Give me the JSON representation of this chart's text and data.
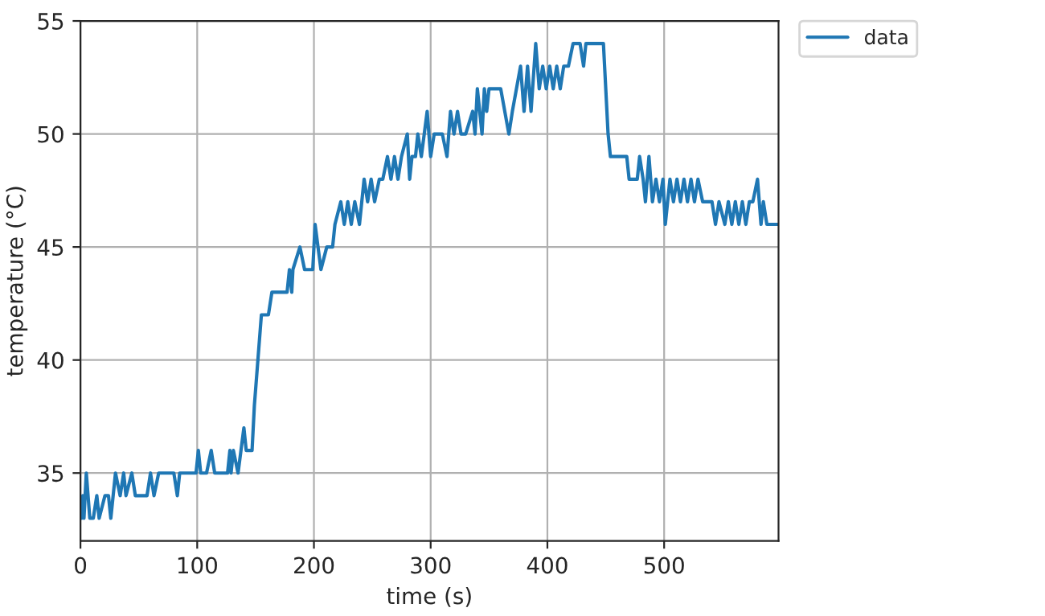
{
  "chart_data": {
    "type": "line",
    "xlabel": "time (s)",
    "ylabel": "temperature (°C)",
    "xlim": [
      0,
      598
    ],
    "ylim": [
      32,
      55
    ],
    "xticks": [
      0,
      100,
      200,
      300,
      400,
      500
    ],
    "yticks": [
      35,
      40,
      45,
      50,
      55
    ],
    "grid": true,
    "legend": "outside top right",
    "line_style": "solid",
    "series": [
      {
        "name": "data",
        "color": "#1f77b4",
        "x": [
          0,
          1,
          2,
          3,
          5,
          8,
          11,
          14,
          16,
          21,
          24,
          26,
          30,
          34,
          37,
          39,
          44,
          47,
          57,
          60,
          63,
          67,
          80,
          83,
          85,
          99,
          101,
          103,
          108,
          112,
          115,
          126,
          128,
          129,
          131,
          135,
          140,
          142,
          147,
          149,
          152,
          155,
          161,
          164,
          177,
          179,
          181,
          182,
          188,
          192,
          199,
          201,
          206,
          211,
          216,
          218,
          223,
          226,
          229,
          232,
          235,
          239,
          243,
          246,
          249,
          252,
          256,
          259,
          263,
          266,
          269,
          272,
          275,
          280,
          282,
          284,
          287,
          289,
          292,
          297,
          300,
          303,
          310,
          314,
          317,
          320,
          323,
          326,
          330,
          336,
          338,
          340,
          344,
          346,
          348,
          350,
          352,
          360,
          367,
          370,
          377,
          380,
          383,
          386,
          390,
          393,
          396,
          399,
          402,
          405,
          408,
          411,
          414,
          418,
          422,
          428,
          431,
          433,
          448,
          452,
          454,
          468,
          470,
          477,
          479,
          482,
          484,
          487,
          490,
          493,
          496,
          499,
          501,
          505,
          508,
          511,
          514,
          517,
          520,
          523,
          526,
          529,
          533,
          541,
          544,
          547,
          552,
          555,
          558,
          561,
          564,
          567,
          570,
          573,
          576,
          580,
          583,
          585,
          588,
          591,
          598
        ],
        "values": [
          33,
          33,
          34,
          33,
          35,
          33,
          33,
          34,
          33,
          34,
          34,
          33,
          35,
          34,
          35,
          34,
          35,
          34,
          34,
          35,
          34,
          35,
          35,
          34,
          35,
          35,
          36,
          35,
          35,
          36,
          35,
          35,
          36,
          35,
          36,
          35,
          37,
          36,
          36,
          38,
          40,
          42,
          42,
          43,
          43,
          44,
          43,
          44,
          45,
          44,
          44,
          46,
          44,
          45,
          45,
          46,
          47,
          46,
          47,
          46,
          47,
          46,
          48,
          47,
          48,
          47,
          48,
          48,
          49,
          48,
          49,
          48,
          49,
          50,
          48,
          49,
          49,
          50,
          49,
          51,
          49,
          50,
          50,
          49,
          51,
          50,
          51,
          50,
          50,
          51,
          50,
          52,
          50,
          52,
          51,
          52,
          52,
          52,
          50,
          51,
          53,
          51,
          53,
          51,
          54,
          52,
          53,
          52,
          53,
          52,
          53,
          52,
          53,
          53,
          54,
          54,
          53,
          54,
          54,
          50,
          49,
          49,
          48,
          48,
          49,
          48,
          47,
          49,
          47,
          48,
          47,
          48,
          46,
          48,
          47,
          48,
          47,
          48,
          47,
          48,
          47,
          48,
          47,
          47,
          46,
          47,
          46,
          47,
          46,
          47,
          46,
          47,
          46,
          47,
          47,
          48,
          46,
          47,
          46,
          46,
          46
        ]
      }
    ]
  }
}
